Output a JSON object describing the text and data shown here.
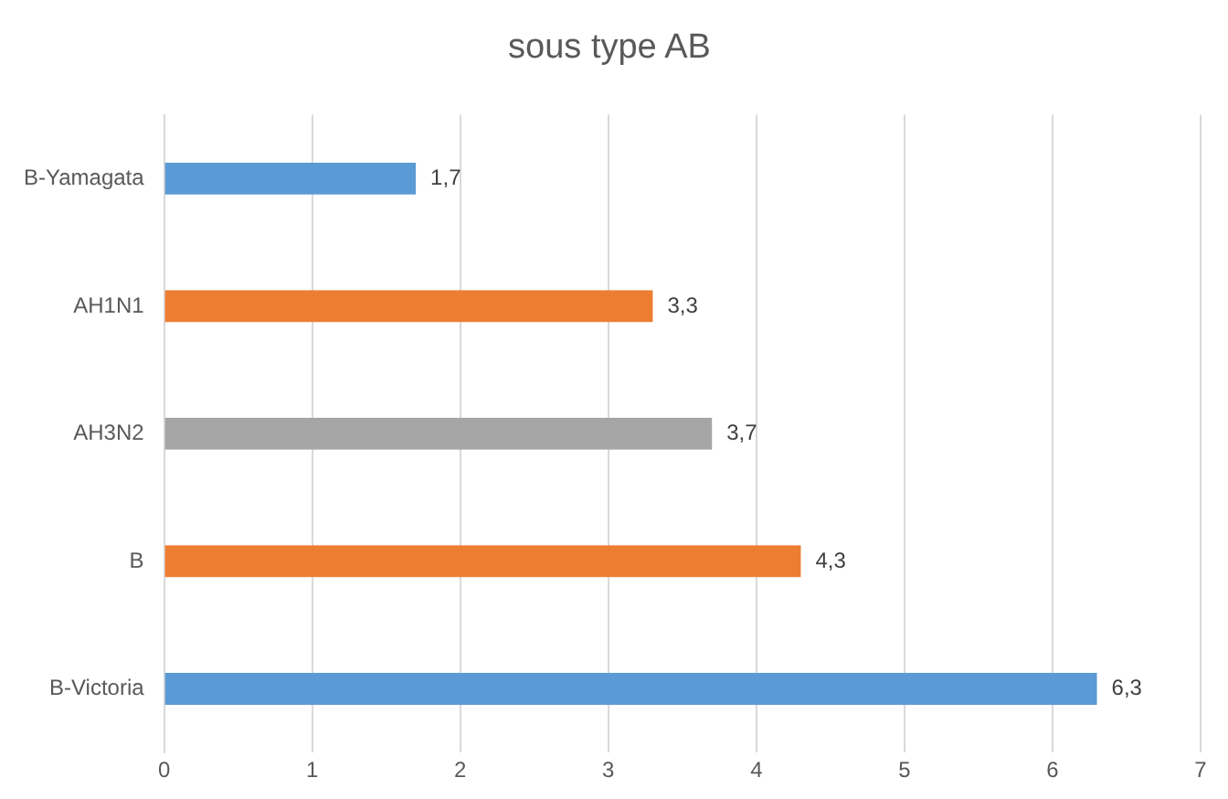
{
  "chart_data": {
    "type": "bar",
    "orientation": "horizontal",
    "title": "sous type AB",
    "categories": [
      "B-Yamagata",
      "AH1N1",
      "AH3N2",
      "B",
      "B-Victoria"
    ],
    "values": [
      1.7,
      3.3,
      3.7,
      4.3,
      6.3
    ],
    "colors": [
      "#5b9bd5",
      "#ed7d31",
      "#a5a5a5",
      "#ed7d31",
      "#5b9bd5"
    ],
    "value_labels": [
      "1,7",
      "3,3",
      "3,7",
      "4,3",
      "6,3"
    ],
    "xlim": [
      0,
      7
    ],
    "xticks": [
      0,
      1,
      2,
      3,
      4,
      5,
      6,
      7
    ],
    "grid": "x",
    "legend": false
  }
}
